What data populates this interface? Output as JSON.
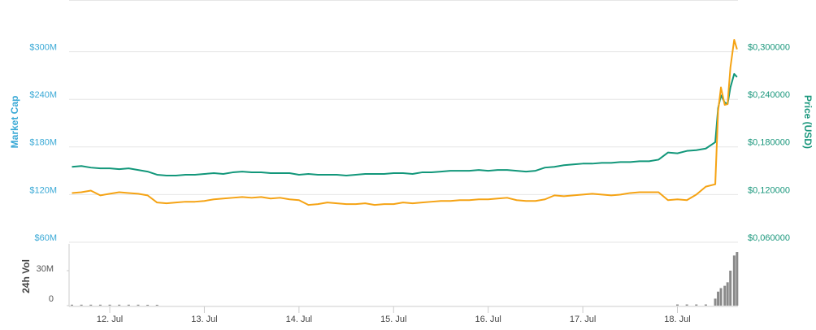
{
  "chart_data": [
    {
      "type": "line",
      "x": [
        11.6,
        11.7,
        11.8,
        11.9,
        12.0,
        12.1,
        12.2,
        12.3,
        12.4,
        12.5,
        12.6,
        12.7,
        12.8,
        12.9,
        13.0,
        13.1,
        13.2,
        13.3,
        13.4,
        13.5,
        13.6,
        13.7,
        13.8,
        13.9,
        14.0,
        14.1,
        14.2,
        14.3,
        14.4,
        14.5,
        14.6,
        14.7,
        14.8,
        14.9,
        15.0,
        15.1,
        15.2,
        15.3,
        15.4,
        15.5,
        15.6,
        15.7,
        15.8,
        15.9,
        16.0,
        16.1,
        16.2,
        16.3,
        16.4,
        16.5,
        16.6,
        16.7,
        16.8,
        16.9,
        17.0,
        17.1,
        17.2,
        17.3,
        17.4,
        17.5,
        17.6,
        17.7,
        17.8,
        17.9,
        18.0,
        18.1,
        18.2,
        18.3,
        18.4,
        18.43,
        18.46,
        18.5,
        18.53,
        18.56,
        18.6,
        18.63
      ],
      "xlim": [
        11.57,
        18.64
      ],
      "ylim": [
        60000000,
        360000000
      ],
      "yticks": [
        {
          "value": 60000000,
          "label": "$60M"
        },
        {
          "value": 120000000,
          "label": "$120M"
        },
        {
          "value": 180000000,
          "label": "$180M"
        },
        {
          "value": 240000000,
          "label": "$240M"
        },
        {
          "value": 300000000,
          "label": "$300M"
        }
      ],
      "y2lim": [
        0.06,
        0.36
      ],
      "y2ticks": [
        {
          "value": 0.06,
          "label": "$0,060000"
        },
        {
          "value": 0.12,
          "label": "$0,120000"
        },
        {
          "value": 0.18,
          "label": "$0,180000"
        },
        {
          "value": 0.24,
          "label": "$0,240000"
        },
        {
          "value": 0.3,
          "label": "$0,300000"
        }
      ],
      "ylabel": "Market Cap",
      "y2label": "Price (USD)",
      "grid": true,
      "series": [
        {
          "color": "#12977a",
          "axis": "y2",
          "values": [
            0.155,
            0.156,
            0.154,
            0.153,
            0.153,
            0.152,
            0.153,
            0.151,
            0.149,
            0.145,
            0.144,
            0.144,
            0.145,
            0.145,
            0.146,
            0.147,
            0.146,
            0.148,
            0.149,
            0.148,
            0.148,
            0.147,
            0.147,
            0.147,
            0.145,
            0.146,
            0.145,
            0.145,
            0.145,
            0.144,
            0.145,
            0.146,
            0.146,
            0.146,
            0.147,
            0.147,
            0.146,
            0.148,
            0.148,
            0.149,
            0.15,
            0.15,
            0.15,
            0.151,
            0.15,
            0.151,
            0.151,
            0.15,
            0.149,
            0.15,
            0.154,
            0.155,
            0.157,
            0.158,
            0.159,
            0.159,
            0.16,
            0.16,
            0.161,
            0.161,
            0.162,
            0.162,
            0.164,
            0.173,
            0.172,
            0.175,
            0.176,
            0.178,
            0.186,
            0.229,
            0.245,
            0.236,
            0.234,
            0.255,
            0.272,
            0.268
          ]
        },
        {
          "color": "#f5a314",
          "values": [
            122000000,
            123000000,
            125000000,
            119000000,
            121000000,
            123000000,
            122000000,
            121000000,
            119000000,
            110000000,
            109000000,
            110000000,
            111000000,
            111000000,
            112000000,
            114000000,
            115000000,
            116000000,
            117000000,
            116000000,
            117000000,
            115000000,
            116000000,
            114000000,
            113000000,
            107000000,
            108000000,
            110000000,
            109000000,
            108000000,
            108000000,
            109000000,
            107000000,
            108000000,
            108000000,
            110000000,
            109000000,
            110000000,
            111000000,
            112000000,
            112000000,
            113000000,
            113000000,
            114000000,
            114000000,
            115000000,
            116000000,
            113000000,
            112000000,
            112000000,
            114000000,
            119000000,
            118000000,
            119000000,
            120000000,
            121000000,
            120000000,
            119000000,
            120000000,
            122000000,
            123000000,
            123000000,
            123000000,
            113000000,
            114000000,
            113000000,
            120000000,
            130000000,
            133000000,
            225000000,
            255000000,
            233000000,
            234000000,
            280000000,
            315000000,
            303000000
          ]
        }
      ]
    },
    {
      "type": "bar",
      "x": [
        11.6,
        11.7,
        11.8,
        11.9,
        12.0,
        12.1,
        12.2,
        12.3,
        12.4,
        12.5,
        12.6,
        12.7,
        12.8,
        12.9,
        13.0,
        13.1,
        13.2,
        13.3,
        13.4,
        13.5,
        13.6,
        13.7,
        13.8,
        13.9,
        14.0,
        14.1,
        14.2,
        14.3,
        14.4,
        14.5,
        14.6,
        14.7,
        14.8,
        14.9,
        15.0,
        15.1,
        15.2,
        15.3,
        15.4,
        15.5,
        15.6,
        15.7,
        15.8,
        15.9,
        16.0,
        16.1,
        16.2,
        16.3,
        16.4,
        16.5,
        16.6,
        16.7,
        16.8,
        16.9,
        17.0,
        17.1,
        17.2,
        17.3,
        17.4,
        17.5,
        17.6,
        17.7,
        17.8,
        17.9,
        18.0,
        18.1,
        18.2,
        18.3,
        18.4,
        18.43,
        18.46,
        18.5,
        18.53,
        18.56,
        18.6,
        18.63
      ],
      "xlim": [
        11.57,
        18.64
      ],
      "xticks": [
        {
          "value": 12,
          "label": "12. Jul"
        },
        {
          "value": 13,
          "label": "13. Jul"
        },
        {
          "value": 14,
          "label": "14. Jul"
        },
        {
          "value": 15,
          "label": "15. Jul"
        },
        {
          "value": 16,
          "label": "16. Jul"
        },
        {
          "value": 17,
          "label": "17. Jul"
        },
        {
          "value": 18,
          "label": "18. Jul"
        }
      ],
      "ylim": [
        0,
        53000000
      ],
      "yticks": [
        0,
        {
          "value": 30000000,
          "label": "30M"
        }
      ],
      "ylabel": "24h Vol",
      "color": "#8a8a8a",
      "values": [
        800000,
        800000,
        800000,
        800000,
        800000,
        800000,
        800000,
        800000,
        700000,
        700000,
        0,
        0,
        0,
        0,
        0,
        0,
        0,
        0,
        0,
        0,
        0,
        0,
        0,
        0,
        0,
        0,
        0,
        0,
        0,
        0,
        0,
        0,
        0,
        0,
        0,
        0,
        0,
        0,
        0,
        0,
        0,
        0,
        0,
        0,
        0,
        0,
        0,
        0,
        0,
        0,
        0,
        0,
        0,
        0,
        0,
        0,
        0,
        0,
        0,
        0,
        0,
        0,
        0,
        0,
        1000000,
        1000000,
        1000000,
        1000000,
        6000000,
        12000000,
        15000000,
        17000000,
        20000000,
        30000000,
        43000000,
        46000000
      ]
    }
  ]
}
